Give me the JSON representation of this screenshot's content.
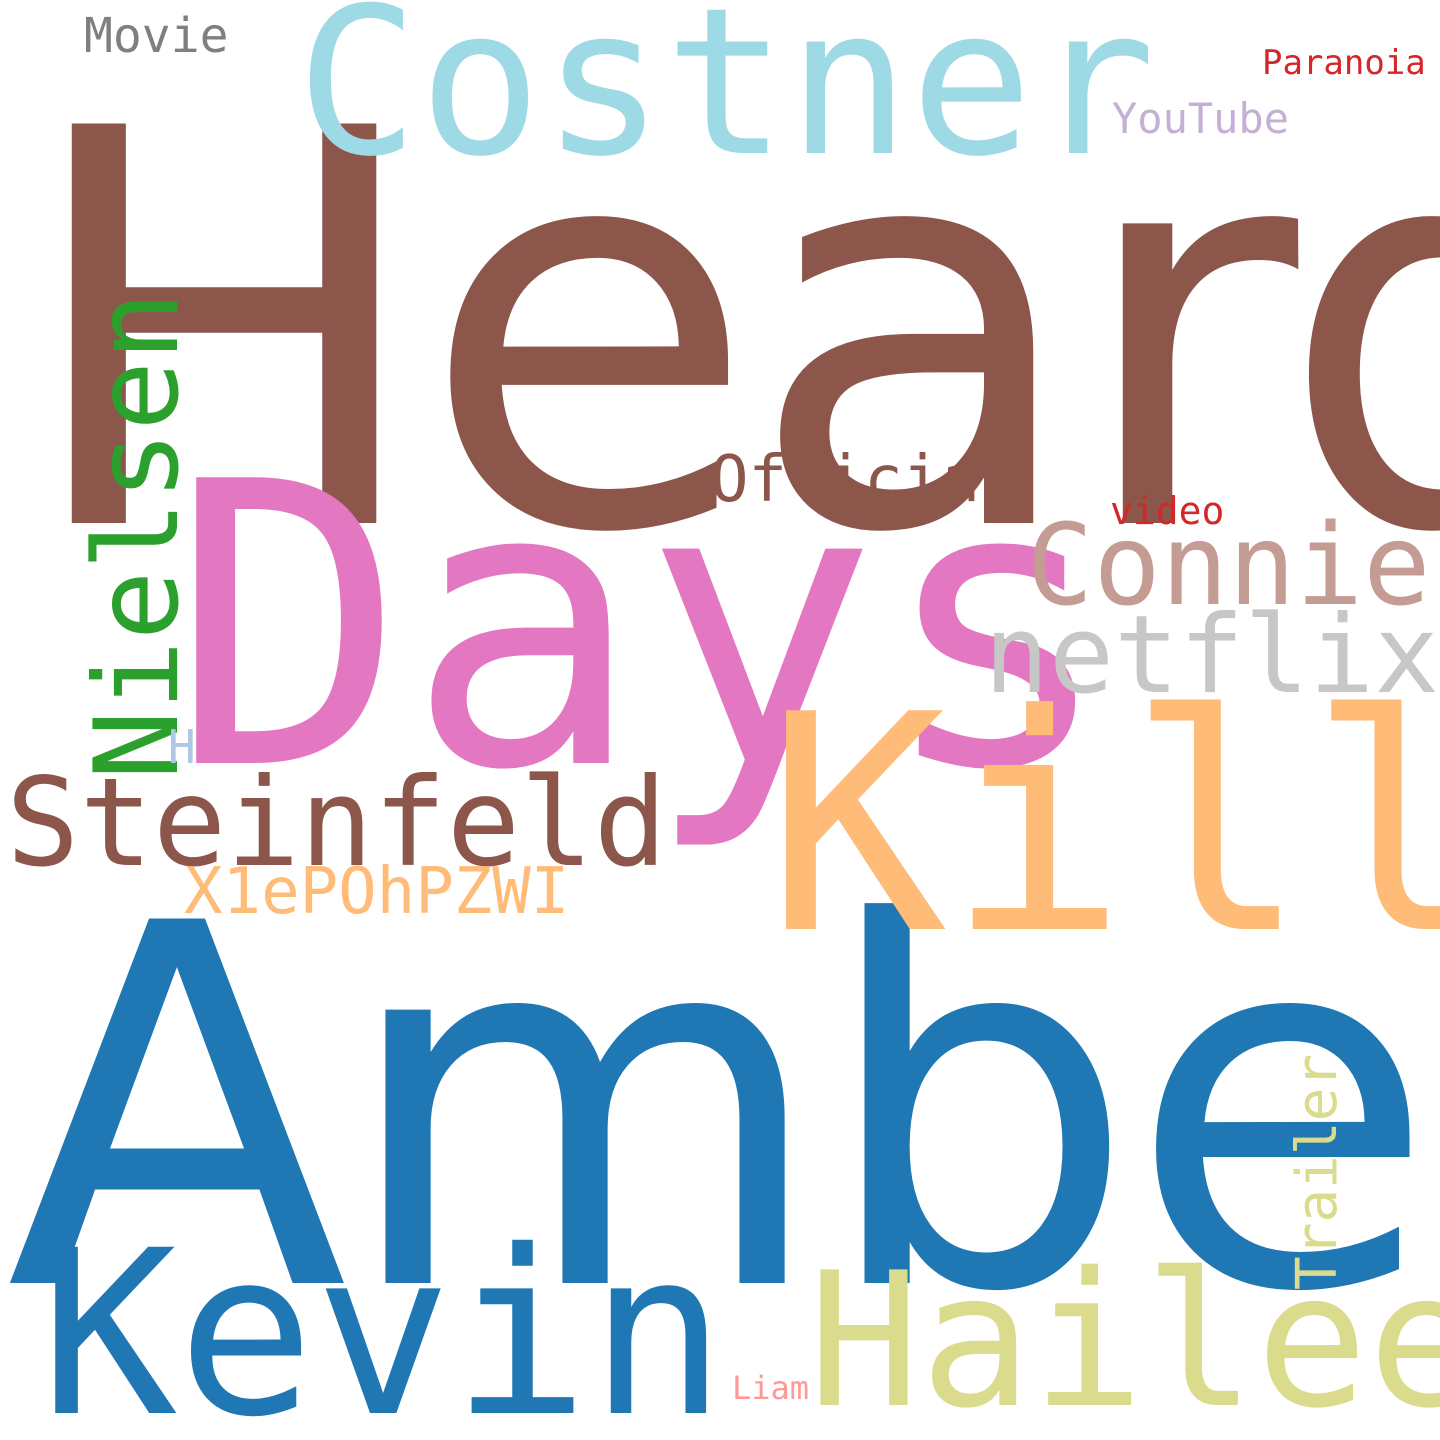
{
  "words": {
    "heard": {
      "text": "Heard",
      "color": "#8c564b"
    },
    "amber": {
      "text": "Amber",
      "color": "#1f77b4"
    },
    "days": {
      "text": "Days",
      "color": "#e377c2"
    },
    "costner": {
      "text": "Costner",
      "color": "#9edae5"
    },
    "kill": {
      "text": "Kill",
      "color": "#ffbb78"
    },
    "kevin": {
      "text": "Kevin",
      "color": "#1f77b4"
    },
    "hailee": {
      "text": "Hailee",
      "color": "#dbdb8d"
    },
    "nielsen": {
      "text": "Nielsen",
      "color": "#2ca02c"
    },
    "steinfeld": {
      "text": "Steinfeld",
      "color": "#8c564b"
    },
    "netflix": {
      "text": "netflix",
      "color": "#c7c7c7"
    },
    "connie": {
      "text": "Connie",
      "color": "#c49c94"
    },
    "official": {
      "text": "Official",
      "color": "#8c564b"
    },
    "x1e": {
      "text": "X1ePOhPZWI",
      "color": "#ffbb78"
    },
    "youtube": {
      "text": "YouTube",
      "color": "#c5b0d5"
    },
    "movie": {
      "text": "Movie",
      "color": "#7f7f7f"
    },
    "paranoia": {
      "text": "Paranoia",
      "color": "#d62728"
    },
    "video": {
      "text": "video",
      "color": "#d62728"
    },
    "hd": {
      "text": "HD",
      "color": "#aec7e8"
    },
    "trailer": {
      "text": "Trailer",
      "color": "#dbdb8d"
    },
    "liam": {
      "text": "Liam",
      "color": "#ff9896"
    }
  }
}
